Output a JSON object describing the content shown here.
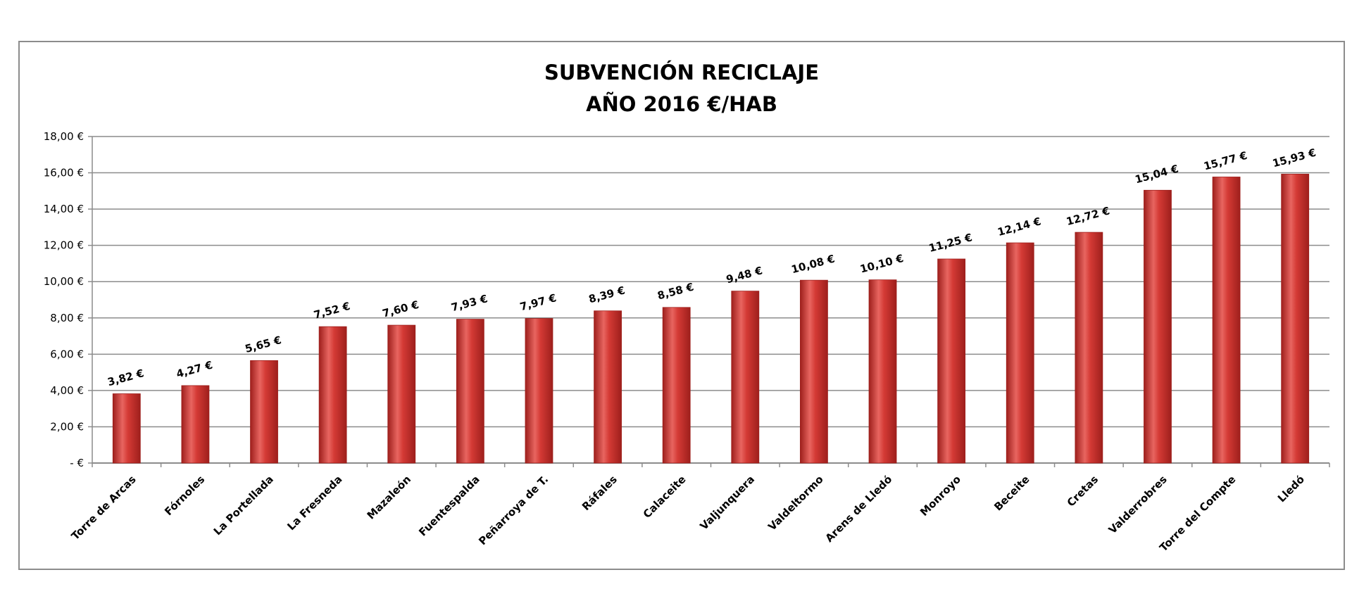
{
  "chart_data": {
    "type": "bar",
    "title": [
      "SUBVENCIÓN RECICLAJE",
      "AÑO 2016 €/HAB"
    ],
    "xlabel": "",
    "ylabel": "",
    "ylim": [
      0,
      18
    ],
    "y_ticks": [
      0,
      2,
      4,
      6,
      8,
      10,
      12,
      14,
      16,
      18
    ],
    "y_tick_labels": [
      "-   €",
      "2,00 €",
      "4,00 €",
      "6,00 €",
      "8,00 €",
      "10,00 €",
      "12,00 €",
      "14,00 €",
      "16,00 €",
      "18,00 €"
    ],
    "grid": true,
    "legend": "none",
    "categories": [
      "Torre de Arcas",
      "Fórnoles",
      "La Portellada",
      "La Fresneda",
      "Mazaleón",
      "Fuentespalda",
      "Peñarroya de T.",
      "Ráfales",
      "Calaceite",
      "Valjunquera",
      "Valdeltormo",
      "Arens de Lledó",
      "Monroyo",
      "Beceite",
      "Cretas",
      "Valderrobres",
      "Torre del Compte",
      "Lledó"
    ],
    "values": [
      3.82,
      4.27,
      5.65,
      7.52,
      7.6,
      7.93,
      7.97,
      8.39,
      8.58,
      9.48,
      10.08,
      10.1,
      11.25,
      12.14,
      12.72,
      15.04,
      15.77,
      15.93
    ],
    "value_labels": [
      "3,82 €",
      "4,27 €",
      "5,65 €",
      "7,52 €",
      "7,60 €",
      "7,93 €",
      "7,97 €",
      "8,39 €",
      "8,58 €",
      "9,48 €",
      "10,08 €",
      "10,10 €",
      "11,25 €",
      "12,14 €",
      "12,72 €",
      "15,04 €",
      "15,77 €",
      "15,93 €"
    ],
    "colors": {
      "bar": "#d43a35",
      "bar_dark": "#9e1f1c",
      "bar_light": "#e86560",
      "grid": "#8c8c8c"
    }
  }
}
